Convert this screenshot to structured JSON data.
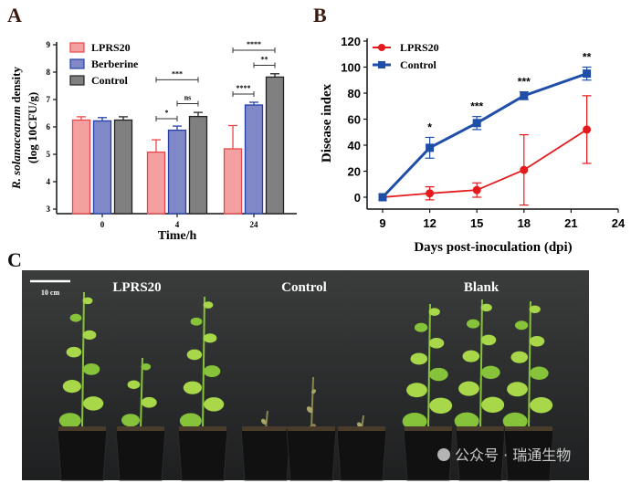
{
  "panel_labels": {
    "a": "A",
    "b": "B",
    "c": "C"
  },
  "chart_data": [
    {
      "type": "bar",
      "panel": "A",
      "title": "",
      "xlabel": "Time/h",
      "ylabel_italic": "R. solanacearum",
      "ylabel_rest": " density",
      "ylabel_line2": "(log 10CFU/g)",
      "ylim": [
        3,
        9
      ],
      "yticks": [
        "3",
        "4",
        "5",
        "6",
        "7",
        "8",
        "9"
      ],
      "categories": [
        "0",
        "4",
        "24"
      ],
      "legend_position": "top-left",
      "series": [
        {
          "name": "LPRS20",
          "color": "#f4a0a0",
          "edge": "#e8474a",
          "values": [
            6.25,
            5.08,
            5.2
          ],
          "errors": [
            0.12,
            0.45,
            0.85
          ]
        },
        {
          "name": "Berberine",
          "color": "#8088c8",
          "edge": "#2440a8",
          "values": [
            6.22,
            5.88,
            6.8
          ],
          "errors": [
            0.12,
            0.15,
            0.1
          ]
        },
        {
          "name": "Control",
          "color": "#808080",
          "edge": "#222222",
          "values": [
            6.25,
            6.38,
            7.82
          ],
          "errors": [
            0.12,
            0.15,
            0.12
          ]
        }
      ],
      "significance": [
        {
          "category": 1,
          "from": 0,
          "to": 1,
          "y": 6.3,
          "label": "*"
        },
        {
          "category": 1,
          "from": 1,
          "to": 2,
          "y": 6.85,
          "label": "ns"
        },
        {
          "category": 1,
          "from": 0,
          "to": 2,
          "y": 7.72,
          "label": "***"
        },
        {
          "category": 2,
          "from": 0,
          "to": 1,
          "y": 7.2,
          "label": "****"
        },
        {
          "category": 2,
          "from": 1,
          "to": 2,
          "y": 8.25,
          "label": "**"
        },
        {
          "category": 2,
          "from": 0,
          "to": 2,
          "y": 8.8,
          "label": "****"
        }
      ]
    },
    {
      "type": "line",
      "panel": "B",
      "xlabel": "Days post-inoculation (dpi)",
      "ylabel": "Disease index",
      "xlim": [
        9,
        24
      ],
      "ylim": [
        -8,
        120
      ],
      "xticks": [
        "9",
        "12",
        "15",
        "18",
        "21",
        "24"
      ],
      "yticks": [
        "0",
        "20",
        "40",
        "60",
        "80",
        "100",
        "120"
      ],
      "legend_position": "top-left",
      "x": [
        9,
        12,
        15,
        18,
        22
      ],
      "series": [
        {
          "name": "LPRS20",
          "color": "#e41a1c",
          "marker": "circle",
          "values": [
            0,
            3,
            5.5,
            21,
            52
          ],
          "errors": [
            0,
            5,
            5.5,
            27,
            26
          ]
        },
        {
          "name": "Control",
          "color": "#1f4ea8",
          "marker": "square",
          "values": [
            0,
            38,
            57,
            78,
            95
          ],
          "errors": [
            0,
            8,
            5,
            3,
            5
          ]
        }
      ],
      "annotations": [
        "",
        "*",
        "***",
        "***",
        "**"
      ]
    }
  ],
  "photo": {
    "scale_bar_label": "10 cm",
    "groups": [
      "LPRS20",
      "Control",
      "Blank"
    ],
    "watermark": "公众号 · 瑞通生物"
  }
}
